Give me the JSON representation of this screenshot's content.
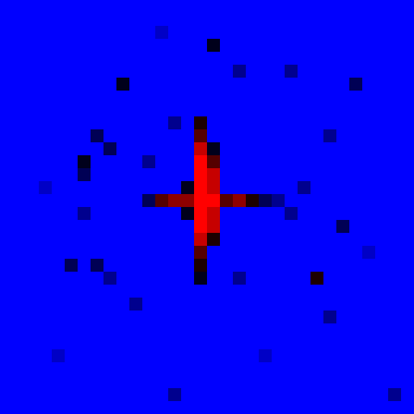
{
  "chart_data": {
    "type": "heatmap",
    "tick_labels": false,
    "zlim": [
      0,
      9
    ],
    "cells": [
      [
        0,
        0,
        0,
        0,
        0,
        0,
        0,
        0,
        0,
        0,
        0,
        0,
        0,
        0,
        0,
        0,
        0,
        0,
        0,
        0,
        0,
        0,
        0,
        0,
        0,
        0,
        0,
        0,
        0,
        0,
        0,
        0
      ],
      [
        0,
        0,
        0,
        0,
        0,
        0,
        0,
        0,
        0,
        0,
        0,
        0,
        0,
        0,
        0,
        0,
        0,
        0,
        0,
        0,
        0,
        0,
        0,
        0,
        0,
        0,
        0,
        0,
        0,
        0,
        0,
        0
      ],
      [
        0,
        0,
        0,
        0,
        0,
        0,
        0,
        0,
        0,
        0,
        0,
        0,
        1,
        0,
        0,
        0,
        0,
        0,
        0,
        0,
        0,
        0,
        0,
        0,
        0,
        0,
        0,
        0,
        0,
        0,
        0,
        0
      ],
      [
        0,
        0,
        0,
        0,
        0,
        0,
        0,
        0,
        0,
        0,
        0,
        0,
        0,
        0,
        0,
        0,
        4,
        0,
        0,
        0,
        0,
        0,
        0,
        0,
        0,
        0,
        0,
        0,
        0,
        0,
        0,
        0
      ],
      [
        0,
        0,
        0,
        0,
        0,
        0,
        0,
        0,
        0,
        0,
        0,
        0,
        0,
        0,
        0,
        0,
        0,
        0,
        0,
        0,
        0,
        0,
        0,
        0,
        0,
        0,
        0,
        0,
        0,
        0,
        0,
        0
      ],
      [
        0,
        0,
        0,
        0,
        0,
        0,
        0,
        0,
        0,
        0,
        0,
        0,
        0,
        0,
        0,
        0,
        0,
        0,
        2,
        0,
        0,
        0,
        2,
        0,
        0,
        0,
        0,
        0,
        0,
        0,
        0,
        0
      ],
      [
        0,
        0,
        0,
        0,
        0,
        0,
        0,
        0,
        0,
        4,
        0,
        0,
        0,
        0,
        0,
        0,
        0,
        0,
        0,
        0,
        0,
        0,
        0,
        0,
        0,
        0,
        0,
        3,
        0,
        0,
        0,
        0
      ],
      [
        0,
        0,
        0,
        0,
        0,
        0,
        0,
        0,
        0,
        0,
        0,
        0,
        0,
        0,
        0,
        0,
        0,
        0,
        0,
        0,
        0,
        0,
        0,
        0,
        0,
        0,
        0,
        0,
        0,
        0,
        0,
        0
      ],
      [
        0,
        0,
        0,
        0,
        0,
        0,
        0,
        0,
        0,
        0,
        0,
        0,
        0,
        0,
        0,
        0,
        0,
        0,
        0,
        0,
        0,
        0,
        0,
        0,
        0,
        0,
        0,
        0,
        0,
        0,
        0,
        0
      ],
      [
        0,
        0,
        0,
        0,
        0,
        0,
        0,
        0,
        0,
        0,
        0,
        0,
        0,
        2,
        0,
        5,
        0,
        0,
        0,
        0,
        0,
        0,
        0,
        0,
        0,
        0,
        0,
        0,
        0,
        0,
        0,
        0
      ],
      [
        0,
        0,
        0,
        0,
        0,
        0,
        0,
        3,
        0,
        0,
        0,
        0,
        0,
        0,
        0,
        6,
        0,
        0,
        0,
        0,
        0,
        0,
        0,
        0,
        0,
        2,
        0,
        0,
        0,
        0,
        0,
        0
      ],
      [
        0,
        0,
        0,
        0,
        0,
        0,
        0,
        0,
        3,
        0,
        0,
        0,
        0,
        0,
        0,
        8,
        4,
        0,
        0,
        0,
        0,
        0,
        0,
        0,
        0,
        0,
        0,
        0,
        0,
        0,
        0,
        0
      ],
      [
        0,
        0,
        0,
        0,
        0,
        0,
        4,
        0,
        0,
        0,
        0,
        2,
        0,
        0,
        0,
        9,
        6,
        0,
        0,
        0,
        0,
        0,
        0,
        0,
        0,
        0,
        0,
        0,
        0,
        0,
        0,
        0
      ],
      [
        0,
        0,
        0,
        0,
        0,
        0,
        3,
        0,
        0,
        0,
        0,
        0,
        0,
        0,
        0,
        9,
        8,
        0,
        0,
        0,
        0,
        0,
        0,
        0,
        0,
        0,
        0,
        0,
        0,
        0,
        0,
        0
      ],
      [
        0,
        0,
        0,
        1,
        0,
        0,
        0,
        0,
        0,
        0,
        0,
        0,
        0,
        0,
        4,
        9,
        8,
        0,
        0,
        0,
        0,
        0,
        0,
        2,
        0,
        0,
        0,
        0,
        0,
        0,
        0,
        0
      ],
      [
        0,
        0,
        0,
        0,
        0,
        0,
        0,
        0,
        0,
        0,
        0,
        3,
        6,
        7,
        7,
        9,
        9,
        6,
        7,
        5,
        3,
        2,
        0,
        0,
        0,
        0,
        0,
        0,
        0,
        0,
        0,
        0
      ],
      [
        0,
        0,
        0,
        0,
        0,
        0,
        2,
        0,
        0,
        0,
        0,
        0,
        0,
        0,
        4,
        9,
        8,
        0,
        0,
        0,
        0,
        0,
        2,
        0,
        0,
        0,
        0,
        0,
        0,
        0,
        0,
        0
      ],
      [
        0,
        0,
        0,
        0,
        0,
        0,
        0,
        0,
        0,
        0,
        0,
        0,
        0,
        0,
        0,
        9,
        8,
        0,
        0,
        0,
        0,
        0,
        0,
        0,
        0,
        0,
        3,
        0,
        0,
        0,
        0,
        0
      ],
      [
        0,
        0,
        0,
        0,
        0,
        0,
        0,
        0,
        0,
        0,
        0,
        0,
        0,
        0,
        0,
        8,
        5,
        0,
        0,
        0,
        0,
        0,
        0,
        0,
        0,
        0,
        0,
        0,
        0,
        0,
        0,
        0
      ],
      [
        0,
        0,
        0,
        0,
        0,
        0,
        0,
        0,
        0,
        0,
        0,
        0,
        0,
        0,
        0,
        6,
        0,
        0,
        0,
        0,
        0,
        0,
        0,
        0,
        0,
        0,
        0,
        0,
        1,
        0,
        0,
        0
      ],
      [
        0,
        0,
        0,
        0,
        0,
        3,
        0,
        3,
        0,
        0,
        0,
        0,
        0,
        0,
        0,
        5,
        0,
        0,
        0,
        0,
        0,
        0,
        0,
        0,
        0,
        0,
        0,
        0,
        0,
        0,
        0,
        0
      ],
      [
        0,
        0,
        0,
        0,
        0,
        0,
        0,
        0,
        2,
        0,
        0,
        0,
        0,
        0,
        0,
        4,
        0,
        0,
        2,
        0,
        0,
        0,
        0,
        0,
        5,
        0,
        0,
        0,
        0,
        0,
        0,
        0
      ],
      [
        0,
        0,
        0,
        0,
        0,
        0,
        0,
        0,
        0,
        0,
        0,
        0,
        0,
        0,
        0,
        0,
        0,
        0,
        0,
        0,
        0,
        0,
        0,
        0,
        0,
        0,
        0,
        0,
        0,
        0,
        0,
        0
      ],
      [
        0,
        0,
        0,
        0,
        0,
        0,
        0,
        0,
        0,
        0,
        2,
        0,
        0,
        0,
        0,
        0,
        0,
        0,
        0,
        0,
        0,
        0,
        0,
        0,
        0,
        0,
        0,
        0,
        0,
        0,
        0,
        0
      ],
      [
        0,
        0,
        0,
        0,
        0,
        0,
        0,
        0,
        0,
        0,
        0,
        0,
        0,
        0,
        0,
        0,
        0,
        0,
        0,
        0,
        0,
        0,
        0,
        0,
        0,
        2,
        0,
        0,
        0,
        0,
        0,
        0
      ],
      [
        0,
        0,
        0,
        0,
        0,
        0,
        0,
        0,
        0,
        0,
        0,
        0,
        0,
        0,
        0,
        0,
        0,
        0,
        0,
        0,
        0,
        0,
        0,
        0,
        0,
        0,
        0,
        0,
        0,
        0,
        0,
        0
      ],
      [
        0,
        0,
        0,
        0,
        0,
        0,
        0,
        0,
        0,
        0,
        0,
        0,
        0,
        0,
        0,
        0,
        0,
        0,
        0,
        0,
        0,
        0,
        0,
        0,
        0,
        0,
        0,
        0,
        0,
        0,
        0,
        0
      ],
      [
        0,
        0,
        0,
        0,
        1,
        0,
        0,
        0,
        0,
        0,
        0,
        0,
        0,
        0,
        0,
        0,
        0,
        0,
        0,
        0,
        1,
        0,
        0,
        0,
        0,
        0,
        0,
        0,
        0,
        0,
        0,
        0
      ],
      [
        0,
        0,
        0,
        0,
        0,
        0,
        0,
        0,
        0,
        0,
        0,
        0,
        0,
        0,
        0,
        0,
        0,
        0,
        0,
        0,
        0,
        0,
        0,
        0,
        0,
        0,
        0,
        0,
        0,
        0,
        0,
        0
      ],
      [
        0,
        0,
        0,
        0,
        0,
        0,
        0,
        0,
        0,
        0,
        0,
        0,
        0,
        0,
        0,
        0,
        0,
        0,
        0,
        0,
        0,
        0,
        0,
        0,
        0,
        0,
        0,
        0,
        0,
        0,
        0,
        0
      ],
      [
        0,
        0,
        0,
        0,
        0,
        0,
        0,
        0,
        0,
        0,
        0,
        0,
        0,
        2,
        0,
        0,
        0,
        0,
        0,
        0,
        0,
        0,
        0,
        0,
        0,
        0,
        0,
        0,
        0,
        0,
        2,
        0
      ],
      [
        0,
        0,
        0,
        0,
        0,
        0,
        0,
        0,
        0,
        0,
        0,
        0,
        0,
        0,
        0,
        0,
        0,
        0,
        0,
        0,
        0,
        0,
        0,
        0,
        0,
        0,
        0,
        0,
        0,
        0,
        0,
        0
      ]
    ]
  }
}
